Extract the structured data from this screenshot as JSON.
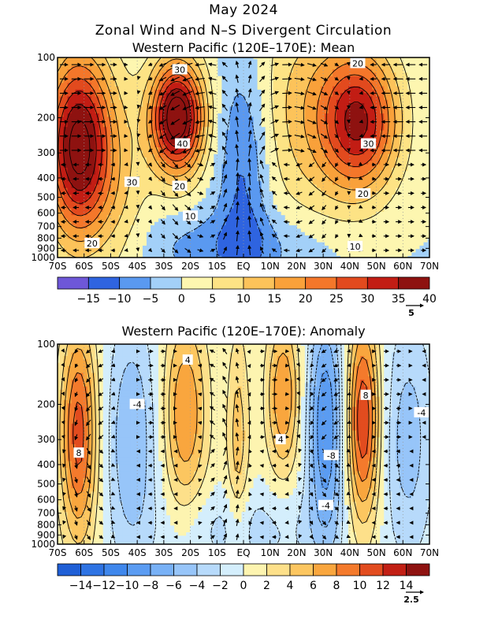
{
  "header": {
    "month_title": "May 2024",
    "main_title": "Zonal Wind and N–S Divergent Circulation"
  },
  "chart_data": [
    {
      "type": "contour",
      "title": "Western Pacific (120E–170E): Mean",
      "x_ticks": [
        "70S",
        "60S",
        "50S",
        "40S",
        "30S",
        "20S",
        "10S",
        "EQ",
        "10N",
        "20N",
        "30N",
        "40N",
        "50N",
        "60N",
        "70N"
      ],
      "y_ticks": [
        100,
        200,
        300,
        400,
        500,
        600,
        700,
        800,
        900,
        1000
      ],
      "y_scale": "log",
      "x_range": [
        -70,
        70
      ],
      "y_range": [
        1000,
        100
      ],
      "colorbar_ticks": [
        "-15",
        "-10",
        "-5",
        "0",
        "5",
        "10",
        "15",
        "20",
        "25",
        "30",
        "35",
        "40"
      ],
      "colors": [
        "#6e57d8",
        "#2f64e0",
        "#5a99f0",
        "#a3d0f8",
        "#fdf6b0",
        "#fde385",
        "#fcc35a",
        "#f9a13a",
        "#f4772a",
        "#e24a1e",
        "#c21d14",
        "#8e1210"
      ],
      "contour_labels": [
        {
          "text": "30",
          "x": -42,
          "p": 420
        },
        {
          "text": "20",
          "x": -57,
          "p": 850
        },
        {
          "text": "30",
          "x": -24,
          "p": 115
        },
        {
          "text": "40",
          "x": -23,
          "p": 270
        },
        {
          "text": "20",
          "x": -24,
          "p": 440
        },
        {
          "text": "10",
          "x": -20,
          "p": 620
        },
        {
          "text": "20",
          "x": 43,
          "p": 107
        },
        {
          "text": "30",
          "x": 47,
          "p": 270
        },
        {
          "text": "20",
          "x": 45,
          "p": 480
        },
        {
          "text": "10",
          "x": 42,
          "p": 880
        }
      ],
      "vector_reference": "5"
    },
    {
      "type": "contour",
      "title": "Western Pacific (120E–170E): Anomaly",
      "x_ticks": [
        "70S",
        "60S",
        "50S",
        "40S",
        "30S",
        "20S",
        "10S",
        "EQ",
        "10N",
        "20N",
        "30N",
        "40N",
        "50N",
        "60N",
        "70N"
      ],
      "y_ticks": [
        100,
        200,
        300,
        400,
        500,
        600,
        700,
        800,
        900,
        1000
      ],
      "y_scale": "log",
      "x_range": [
        -70,
        70
      ],
      "y_range": [
        1000,
        100
      ],
      "colorbar_ticks": [
        "-14",
        "-12",
        "-10",
        "-8",
        "-6",
        "-4",
        "-2",
        "0",
        "2",
        "4",
        "6",
        "8",
        "10",
        "12",
        "14"
      ],
      "colors": [
        "#1f5fd6",
        "#2e73e3",
        "#3f87ec",
        "#5b9cf2",
        "#78b1f6",
        "#97c5f9",
        "#b7dafb",
        "#d4eefc",
        "#fdf4b0",
        "#fde08a",
        "#fcc660",
        "#f9a63e",
        "#f47a2c",
        "#e24c1f",
        "#c21f14",
        "#8e1210"
      ],
      "contour_labels": [
        {
          "text": "8",
          "x": -62,
          "p": 350
        },
        {
          "text": "-4",
          "x": -40,
          "p": 200
        },
        {
          "text": "4",
          "x": -21,
          "p": 120
        },
        {
          "text": "8",
          "x": 46,
          "p": 180
        },
        {
          "text": "-8",
          "x": 33,
          "p": 360
        },
        {
          "text": "-4",
          "x": 31,
          "p": 640
        },
        {
          "text": "-4",
          "x": 67,
          "p": 220
        },
        {
          "text": "4",
          "x": 14,
          "p": 300
        }
      ],
      "vector_reference": "2.5"
    }
  ]
}
